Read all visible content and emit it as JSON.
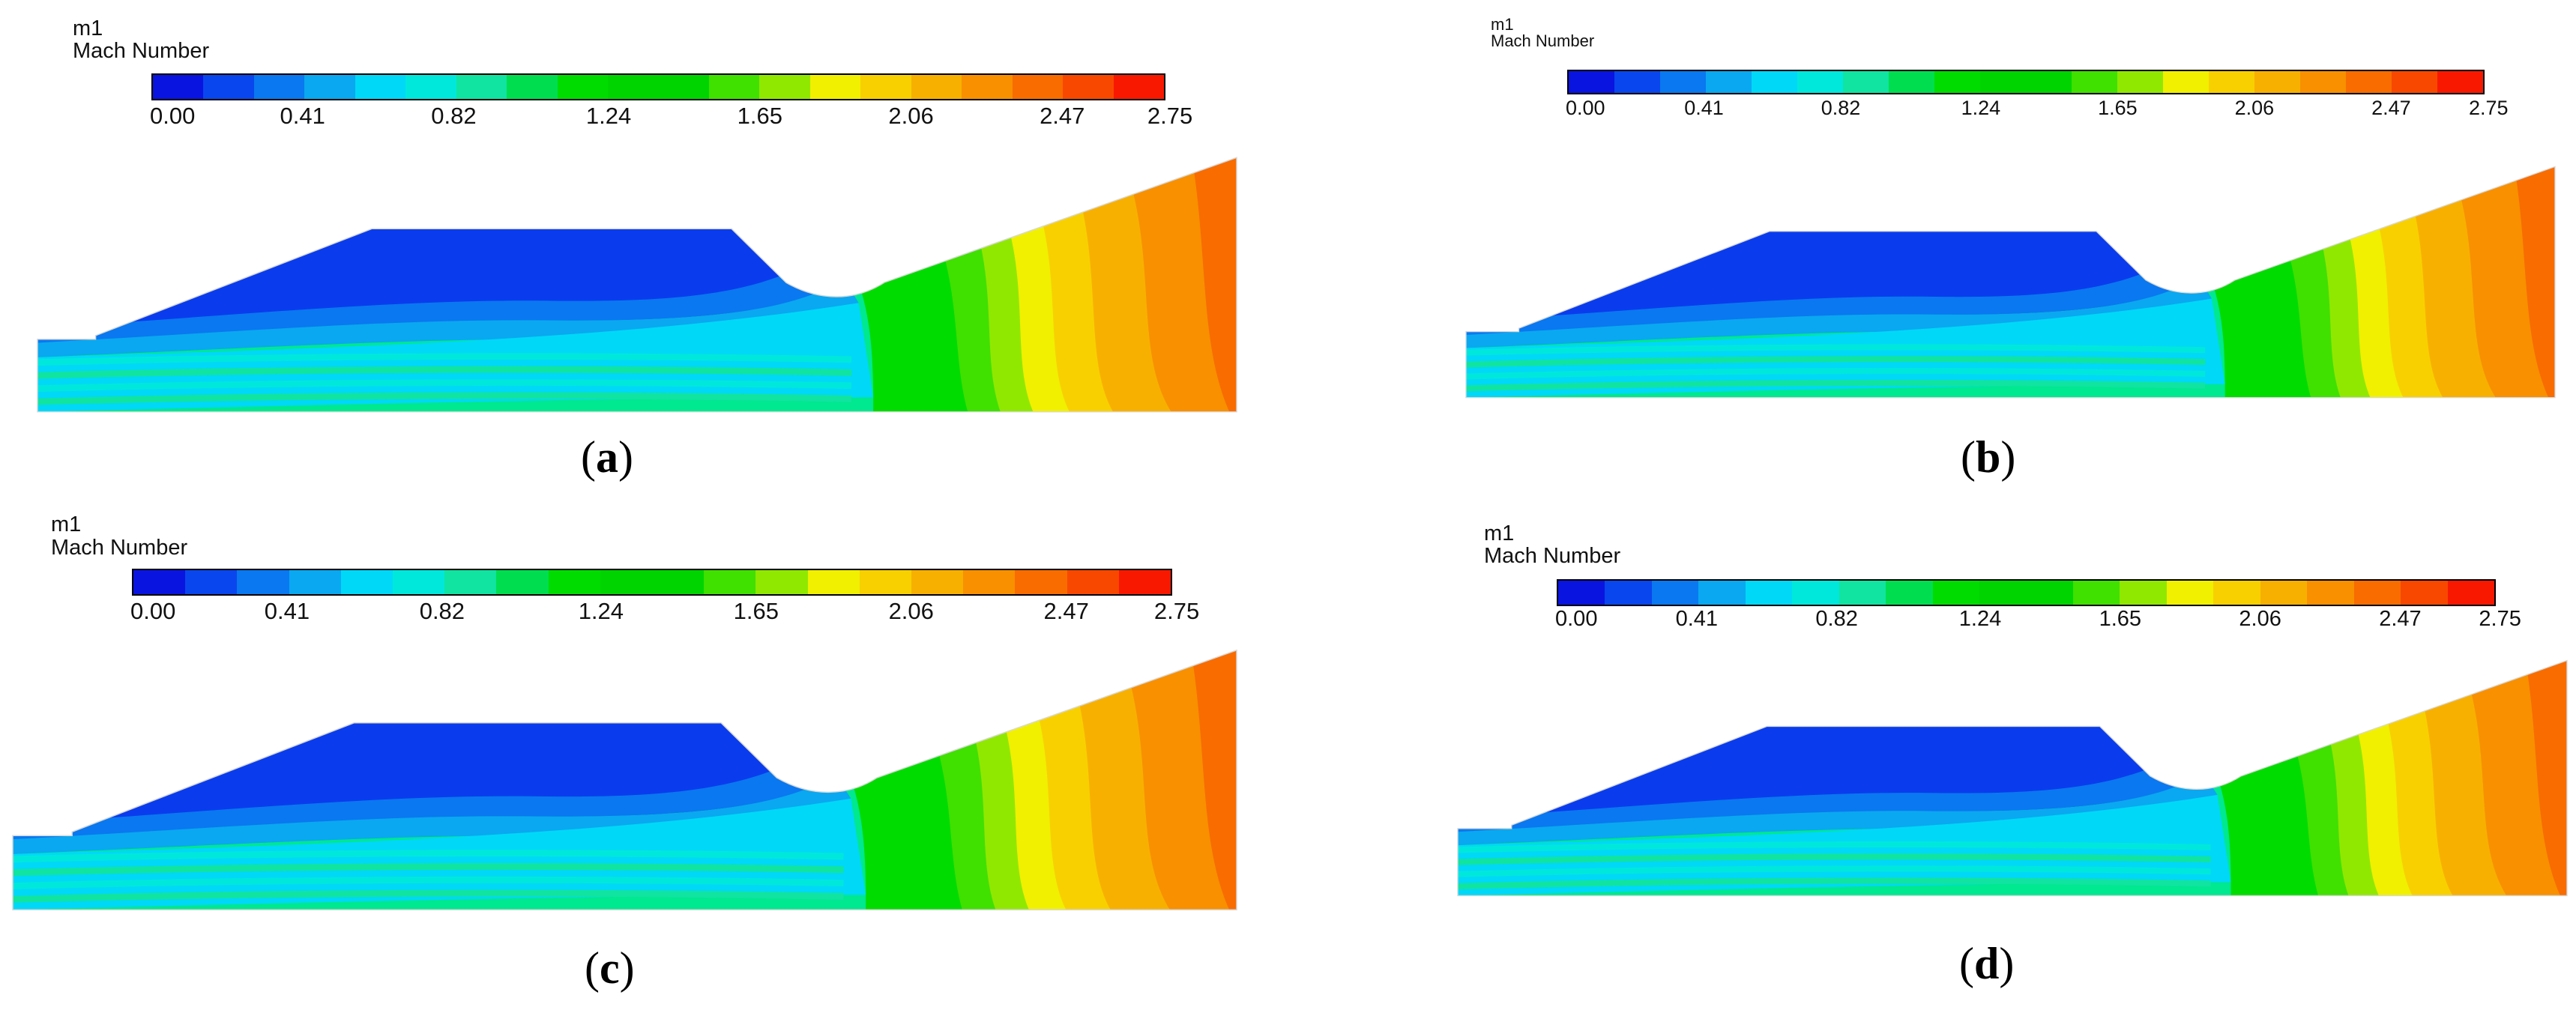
{
  "legend": {
    "variable": "m1",
    "quantity": "Mach Number",
    "ticks": [
      "0.00",
      "0.41",
      "0.82",
      "1.24",
      "1.65",
      "2.06",
      "2.47",
      "2.75"
    ],
    "colors": [
      "#0a14e0",
      "#0a46ee",
      "#0a78f0",
      "#0aa8f0",
      "#00d8f8",
      "#00e8dc",
      "#10e4a0",
      "#00de50",
      "#00dc00",
      "#00d400",
      "#00d400",
      "#40e000",
      "#90e800",
      "#f0f000",
      "#f8d000",
      "#f8b000",
      "#f89000",
      "#f86c00",
      "#f84800",
      "#f81800"
    ]
  },
  "panels": [
    {
      "id": "a",
      "open": "(",
      "letter": "a",
      "close": ")"
    },
    {
      "id": "b",
      "open": "(",
      "letter": "b",
      "close": ")"
    },
    {
      "id": "c",
      "open": "(",
      "letter": "c",
      "close": ")"
    },
    {
      "id": "d",
      "open": "(",
      "letter": "d",
      "close": ")"
    }
  ]
}
